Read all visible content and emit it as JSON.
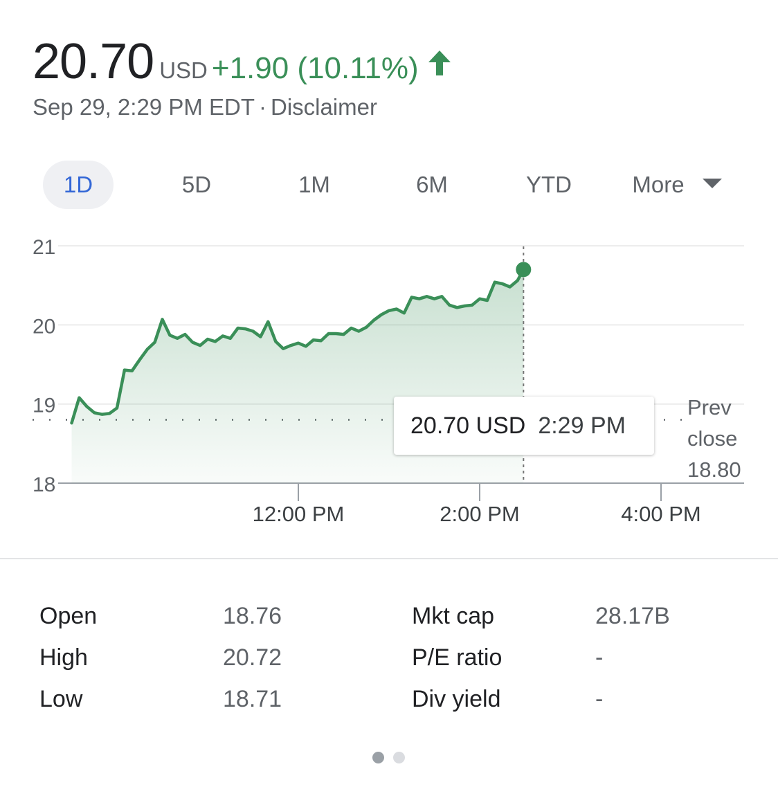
{
  "quote": {
    "price": "20.70",
    "currency": "USD",
    "change": "+1.90 (10.11%)",
    "timestamp": "Sep 29, 2:29 PM EDT",
    "separator": "·",
    "disclaimer": "Disclaimer",
    "trend_icon": "arrow-up-icon",
    "up_color": "#3a8f58"
  },
  "ranges": {
    "tabs": [
      "1D",
      "5D",
      "1M",
      "6M",
      "YTD"
    ],
    "more_label": "More",
    "active": "1D"
  },
  "tooltip": {
    "value": "20.70 USD",
    "time": "2:29 PM"
  },
  "prev_close": {
    "line1": "Prev",
    "line2": "close",
    "value": "18.80"
  },
  "chart_data": {
    "type": "area",
    "y_ticks": [
      "21",
      "20",
      "19",
      "18"
    ],
    "ylim": [
      18,
      21
    ],
    "x_ticks": [
      "12:00 PM",
      "2:00 PM",
      "4:00 PM"
    ],
    "x_tick_values": [
      12.0,
      14.0,
      16.0
    ],
    "x_range": [
      "9:30 AM",
      "4:00 PM"
    ],
    "previous_close": 18.8,
    "line_color": "#3a8f58",
    "series": [
      {
        "x": [
          "9:30",
          "9:35",
          "9:40",
          "9:45",
          "9:50",
          "9:55",
          "10:00",
          "10:05",
          "10:10",
          "10:15",
          "10:20",
          "10:25",
          "10:30",
          "10:35",
          "10:40",
          "10:45",
          "10:50",
          "10:55",
          "11:00",
          "11:05",
          "11:10",
          "11:15",
          "11:20",
          "11:25",
          "11:30",
          "11:35",
          "11:40",
          "11:45",
          "11:50",
          "11:55",
          "12:00",
          "12:05",
          "12:10",
          "12:15",
          "12:20",
          "12:25",
          "12:30",
          "12:35",
          "12:40",
          "12:45",
          "12:50",
          "12:55",
          "13:00",
          "13:05",
          "13:10",
          "13:15",
          "13:20",
          "13:25",
          "13:30",
          "13:35",
          "13:40",
          "13:45",
          "13:50",
          "13:55",
          "14:00",
          "14:05",
          "14:10",
          "14:15",
          "14:20",
          "14:25",
          "14:29"
        ],
        "values": [
          18.76,
          19.08,
          18.97,
          18.89,
          18.87,
          18.88,
          18.95,
          19.43,
          19.42,
          19.56,
          19.69,
          19.78,
          20.07,
          19.87,
          19.83,
          19.88,
          19.78,
          19.74,
          19.82,
          19.79,
          19.86,
          19.83,
          19.96,
          19.95,
          19.92,
          19.85,
          20.04,
          19.79,
          19.7,
          19.74,
          19.77,
          19.73,
          19.81,
          19.8,
          19.89,
          19.89,
          19.88,
          19.96,
          19.92,
          19.97,
          20.06,
          20.13,
          20.18,
          20.2,
          20.15,
          20.35,
          20.33,
          20.36,
          20.33,
          20.36,
          20.25,
          20.22,
          20.24,
          20.25,
          20.33,
          20.31,
          20.54,
          20.52,
          20.48,
          20.56,
          20.7
        ]
      }
    ]
  },
  "stats": {
    "left": [
      {
        "label": "Open",
        "value": "18.76"
      },
      {
        "label": "High",
        "value": "20.72"
      },
      {
        "label": "Low",
        "value": "18.71"
      }
    ],
    "right": [
      {
        "label": "Mkt cap",
        "value": "28.17B"
      },
      {
        "label": "P/E ratio",
        "value": "-"
      },
      {
        "label": "Div yield",
        "value": "-"
      }
    ]
  },
  "pager": {
    "count": 2,
    "active_index": 0,
    "active_color": "#9aa0a6",
    "inactive_color": "#dadce0"
  }
}
